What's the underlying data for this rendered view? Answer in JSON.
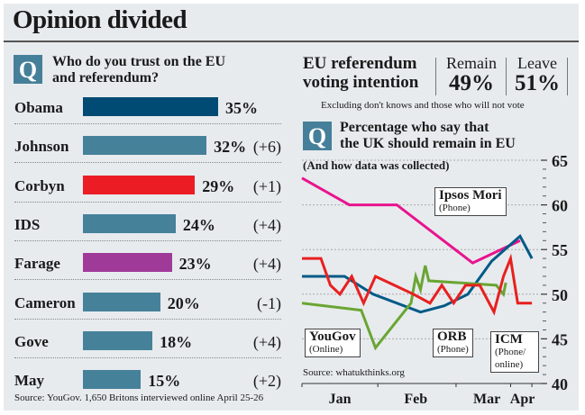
{
  "title": "Opinion divided",
  "trust_panel": {
    "q_badge": "Q",
    "question": "Who do you trust on the EU and referendum?",
    "question_line1": "Who do you trust on the EU",
    "question_line2": "and referendum?",
    "source": "Source: YouGov. 1,650 Britons interviewed online April 25-26"
  },
  "voting_intention": {
    "heading_line1": "EU referendum",
    "heading_line2": "voting intention",
    "remain_label": "Remain",
    "remain_value": "49%",
    "leave_label": "Leave",
    "leave_value": "51%",
    "note": "Excluding don't knows and those who will not vote"
  },
  "remain_panel": {
    "q_badge": "Q",
    "question_line1": "Percentage who say that",
    "question_line2": "the UK should remain in EU",
    "subnote": "(And how data was collected)",
    "source": "Source: whatukthinks.org"
  },
  "chart_data": [
    {
      "type": "bar",
      "title": "Who do you trust on the EU and referendum?",
      "orientation": "horizontal",
      "categories": [
        "Obama",
        "Johnson",
        "Corbyn",
        "IDS",
        "Farage",
        "Cameron",
        "Gove",
        "May"
      ],
      "values": [
        35,
        32,
        29,
        24,
        23,
        20,
        18,
        15
      ],
      "value_labels": [
        "35%",
        "32%",
        "29%",
        "24%",
        "23%",
        "20%",
        "18%",
        "15%"
      ],
      "changes": [
        "",
        "(+6)",
        "(+1)",
        "(+4)",
        "(+4)",
        "(-1)",
        "(+4)",
        "(+2)"
      ],
      "colors": [
        "#004b74",
        "#46819a",
        "#ec1c24",
        "#46819a",
        "#a03a98",
        "#46819a",
        "#46819a",
        "#46819a"
      ],
      "xlim": [
        0,
        35
      ]
    },
    {
      "type": "line",
      "title": "Percentage who say that the UK should remain in EU",
      "subtitle": "(And how data was collected)",
      "x_ticks": [
        "Jan",
        "Feb",
        "Mar",
        "Apr"
      ],
      "xlim": [
        "Jan 1",
        "Apr 5"
      ],
      "ylim": [
        40,
        65
      ],
      "y_ticks": [
        40,
        45,
        50,
        55,
        60,
        65
      ],
      "grid": true,
      "y_axis_side": "right",
      "series": [
        {
          "name": "Ipsos Mori",
          "method": "(Phone)",
          "color": "#e8148e",
          "x": [
            0,
            20,
            40,
            72,
            92
          ],
          "y": [
            63,
            60,
            60,
            53.5,
            56
          ]
        },
        {
          "name": "ORB",
          "method": "(Phone)",
          "color": "#005a87",
          "x": [
            0,
            18,
            30,
            50,
            60,
            70,
            80,
            92,
            97
          ],
          "y": [
            52,
            52,
            50,
            48,
            48.7,
            50,
            53.7,
            56.5,
            54
          ]
        },
        {
          "name": "YouGov",
          "method": "(Online)",
          "color": "#6aa532",
          "x": [
            0,
            25,
            31,
            46,
            48,
            50,
            52,
            53.5,
            82,
            85,
            86
          ],
          "y": [
            49,
            48.2,
            44,
            49,
            52,
            50.5,
            53.2,
            51.5,
            51,
            50,
            51.3
          ]
        },
        {
          "name": "ICM",
          "method": "(Phone/ online)",
          "color": "#e8201f",
          "x": [
            0,
            8,
            12,
            16,
            21,
            26,
            31,
            39,
            47,
            54,
            59,
            64,
            69,
            75,
            81,
            85,
            88,
            91,
            97
          ],
          "y": [
            54,
            54,
            51,
            50,
            52,
            49,
            52,
            51,
            50,
            49,
            51,
            49,
            51,
            51,
            48,
            52,
            54,
            49,
            49
          ]
        }
      ]
    }
  ]
}
